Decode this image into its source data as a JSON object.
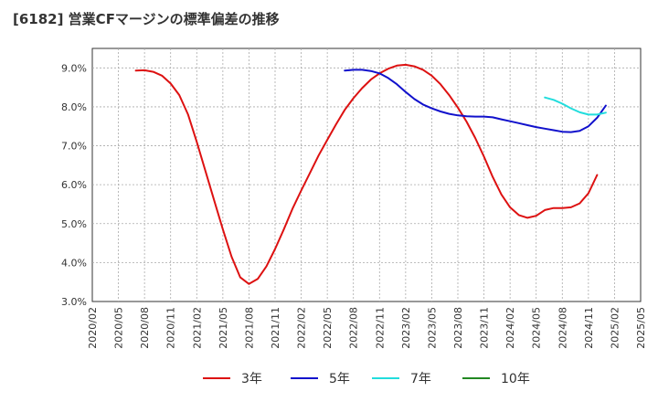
{
  "chart_data": {
    "type": "line",
    "title": "[6182]  営業CFマージンの標準偏差の推移",
    "ylim": [
      3.0,
      9.5
    ],
    "yticks": [
      3.0,
      4.0,
      5.0,
      6.0,
      7.0,
      8.0,
      9.0
    ],
    "ytick_labels": [
      "3.0%",
      "4.0%",
      "5.0%",
      "6.0%",
      "7.0%",
      "8.0%",
      "9.0%"
    ],
    "xlim": [
      "2020-02",
      "2025-05"
    ],
    "xtick_labels": [
      "2020/02",
      "2020/05",
      "2020/08",
      "2020/11",
      "2021/02",
      "2021/05",
      "2021/08",
      "2021/11",
      "2022/02",
      "2022/05",
      "2022/08",
      "2022/11",
      "2023/02",
      "2023/05",
      "2023/08",
      "2023/11",
      "2024/02",
      "2024/05",
      "2024/08",
      "2024/11",
      "2025/02",
      "2025/05"
    ],
    "grid": true,
    "legend_position": "bottom",
    "series": [
      {
        "name": "3年",
        "color": "#dd1111",
        "points": [
          [
            "2020-07",
            8.93
          ],
          [
            "2020-08",
            8.94
          ],
          [
            "2020-09",
            8.9
          ],
          [
            "2020-10",
            8.8
          ],
          [
            "2020-11",
            8.6
          ],
          [
            "2020-12",
            8.3
          ],
          [
            "2021-01",
            7.8
          ],
          [
            "2021-02",
            7.1
          ],
          [
            "2021-03",
            6.35
          ],
          [
            "2021-04",
            5.6
          ],
          [
            "2021-05",
            4.85
          ],
          [
            "2021-06",
            4.15
          ],
          [
            "2021-07",
            3.62
          ],
          [
            "2021-08",
            3.45
          ],
          [
            "2021-09",
            3.58
          ],
          [
            "2021-10",
            3.9
          ],
          [
            "2021-11",
            4.35
          ],
          [
            "2021-12",
            4.85
          ],
          [
            "2022-01",
            5.38
          ],
          [
            "2022-02",
            5.85
          ],
          [
            "2022-03",
            6.3
          ],
          [
            "2022-04",
            6.75
          ],
          [
            "2022-05",
            7.15
          ],
          [
            "2022-06",
            7.55
          ],
          [
            "2022-07",
            7.92
          ],
          [
            "2022-08",
            8.22
          ],
          [
            "2022-09",
            8.48
          ],
          [
            "2022-10",
            8.7
          ],
          [
            "2022-11",
            8.86
          ],
          [
            "2022-12",
            8.98
          ],
          [
            "2023-01",
            9.06
          ],
          [
            "2023-02",
            9.08
          ],
          [
            "2023-03",
            9.04
          ],
          [
            "2023-04",
            8.95
          ],
          [
            "2023-05",
            8.8
          ],
          [
            "2023-06",
            8.58
          ],
          [
            "2023-07",
            8.3
          ],
          [
            "2023-08",
            7.98
          ],
          [
            "2023-09",
            7.62
          ],
          [
            "2023-10",
            7.2
          ],
          [
            "2023-11",
            6.72
          ],
          [
            "2023-12",
            6.2
          ],
          [
            "2024-01",
            5.75
          ],
          [
            "2024-02",
            5.42
          ],
          [
            "2024-03",
            5.22
          ],
          [
            "2024-04",
            5.15
          ],
          [
            "2024-05",
            5.2
          ],
          [
            "2024-06",
            5.35
          ],
          [
            "2024-07",
            5.4
          ],
          [
            "2024-08",
            5.4
          ],
          [
            "2024-09",
            5.42
          ],
          [
            "2024-10",
            5.52
          ],
          [
            "2024-11",
            5.78
          ],
          [
            "2024-12",
            6.25
          ]
        ]
      },
      {
        "name": "5年",
        "color": "#1111cc",
        "points": [
          [
            "2022-07",
            8.93
          ],
          [
            "2022-08",
            8.95
          ],
          [
            "2022-09",
            8.95
          ],
          [
            "2022-10",
            8.92
          ],
          [
            "2022-11",
            8.86
          ],
          [
            "2022-12",
            8.74
          ],
          [
            "2023-01",
            8.58
          ],
          [
            "2023-02",
            8.38
          ],
          [
            "2023-03",
            8.2
          ],
          [
            "2023-04",
            8.06
          ],
          [
            "2023-05",
            7.96
          ],
          [
            "2023-06",
            7.88
          ],
          [
            "2023-07",
            7.82
          ],
          [
            "2023-08",
            7.78
          ],
          [
            "2023-09",
            7.76
          ],
          [
            "2023-10",
            7.75
          ],
          [
            "2023-11",
            7.75
          ],
          [
            "2023-12",
            7.73
          ],
          [
            "2024-01",
            7.68
          ],
          [
            "2024-02",
            7.63
          ],
          [
            "2024-03",
            7.58
          ],
          [
            "2024-04",
            7.53
          ],
          [
            "2024-05",
            7.48
          ],
          [
            "2024-06",
            7.44
          ],
          [
            "2024-07",
            7.4
          ],
          [
            "2024-08",
            7.36
          ],
          [
            "2024-09",
            7.35
          ],
          [
            "2024-10",
            7.38
          ],
          [
            "2024-11",
            7.5
          ],
          [
            "2024-12",
            7.72
          ],
          [
            "2025-01",
            8.03
          ]
        ]
      },
      {
        "name": "7年",
        "color": "#22dddd",
        "points": [
          [
            "2024-06",
            8.24
          ],
          [
            "2024-07",
            8.18
          ],
          [
            "2024-08",
            8.08
          ],
          [
            "2024-09",
            7.96
          ],
          [
            "2024-10",
            7.86
          ],
          [
            "2024-11",
            7.8
          ],
          [
            "2024-12",
            7.8
          ],
          [
            "2025-01",
            7.85
          ]
        ]
      },
      {
        "name": "10年",
        "color": "#228822",
        "points": []
      }
    ]
  }
}
